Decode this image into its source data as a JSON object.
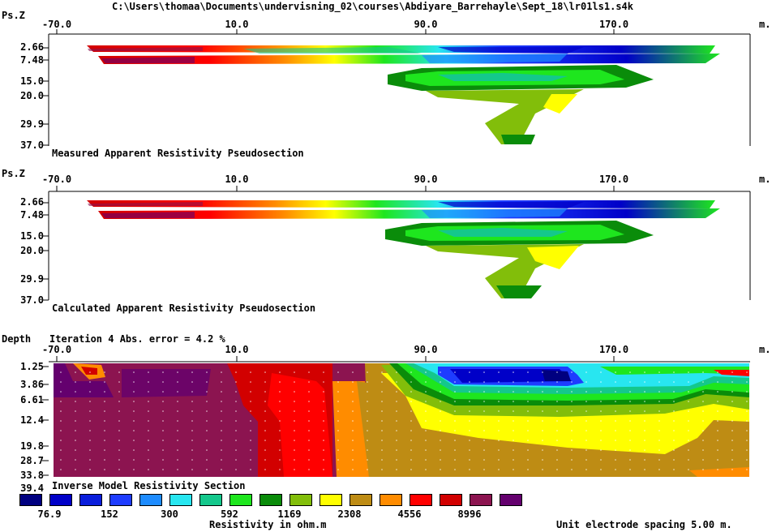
{
  "window_title": "C:\\Users\\thomaa\\Documents\\undervisning_02\\courses\\Abdiyare_Barrehayle\\Sept_18\\lr01ls1.s4k",
  "chart_data": [
    {
      "type": "heatmap",
      "title": "Measured Apparent Resistivity Pseudosection",
      "ylabel": "Ps.Z",
      "x_unit": "m.",
      "x_ticks": [
        "-70.0",
        "10.0",
        "90.0",
        "170.0"
      ],
      "y_ticks": [
        "2.66",
        "7.48",
        "15.0",
        "20.0",
        "29.9",
        "37.0"
      ],
      "xlim": [
        -70,
        230
      ],
      "ylim": [
        0,
        37.0
      ]
    },
    {
      "type": "heatmap",
      "title": "Calculated Apparent Resistivity Pseudosection",
      "ylabel": "Ps.Z",
      "x_unit": "m.",
      "x_ticks": [
        "-70.0",
        "10.0",
        "90.0",
        "170.0"
      ],
      "y_ticks": [
        "2.66",
        "7.48",
        "15.0",
        "20.0",
        "29.9",
        "37.0"
      ],
      "xlim": [
        -70,
        230
      ],
      "ylim": [
        0,
        37.0
      ]
    },
    {
      "type": "heatmap",
      "title": "Inverse Model Resistivity Section",
      "ylabel": "Depth",
      "iteration_note": "Iteration 4 Abs. error = 4.2 %",
      "x_unit": "m.",
      "x_ticks": [
        "-70.0",
        "10.0",
        "90.0",
        "170.0"
      ],
      "y_ticks": [
        "1.25",
        "3.86",
        "6.61",
        "12.4",
        "19.8",
        "28.7",
        "33.8",
        "39.4"
      ],
      "xlim": [
        -70,
        230
      ],
      "ylim": [
        0,
        39.4
      ]
    }
  ],
  "legend": {
    "title": "Resistivity in ohm.m",
    "colors": [
      "#000080",
      "#0000c8",
      "#0a1edc",
      "#1e3cff",
      "#1e8cff",
      "#28e6f0",
      "#14c88c",
      "#1ee61e",
      "#0a8c0a",
      "#82be0a",
      "#ffff00",
      "#be8c14",
      "#ff8c00",
      "#ff0000",
      "#d20000",
      "#8c1450",
      "#64006e"
    ],
    "labels": [
      "76.9",
      "152",
      "300",
      "592",
      "1169",
      "2308",
      "4556",
      "8996"
    ]
  },
  "footer": {
    "spacing_note": "Unit electrode spacing 5.00 m."
  }
}
